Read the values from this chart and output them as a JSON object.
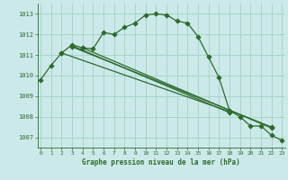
{
  "title": "Graphe pression niveau de la mer (hPa)",
  "background_color": "#cbe9e9",
  "grid_color": "#a8d5cc",
  "line_color": "#2d6a2d",
  "x_ticks": [
    0,
    1,
    2,
    3,
    4,
    5,
    6,
    7,
    8,
    9,
    10,
    11,
    12,
    13,
    14,
    15,
    16,
    17,
    18,
    19,
    20,
    21,
    22,
    23
  ],
  "y_ticks": [
    1007,
    1008,
    1009,
    1010,
    1011,
    1012,
    1013
  ],
  "ylim": [
    1006.5,
    1013.5
  ],
  "xlim": [
    -0.3,
    23.3
  ],
  "line1": [
    1009.8,
    1010.5,
    1011.1,
    1011.5,
    1011.35,
    1011.3,
    1012.1,
    1012.0,
    1012.35,
    1012.55,
    1012.95,
    1013.0,
    1012.95,
    1012.65,
    1012.55,
    1011.9,
    1010.9,
    1009.9,
    1008.3,
    1008.0,
    1007.55,
    1007.55,
    1007.1,
    1006.85
  ],
  "line2_x": [
    2,
    18
  ],
  "line2_y": [
    1011.1,
    1008.25
  ],
  "line3_x": [
    3,
    18
  ],
  "line3_y": [
    1011.45,
    1008.2
  ],
  "line4_x": [
    3,
    22
  ],
  "line4_y": [
    1011.4,
    1007.5
  ],
  "line5_x": [
    4,
    22
  ],
  "line5_y": [
    1011.35,
    1007.45
  ]
}
